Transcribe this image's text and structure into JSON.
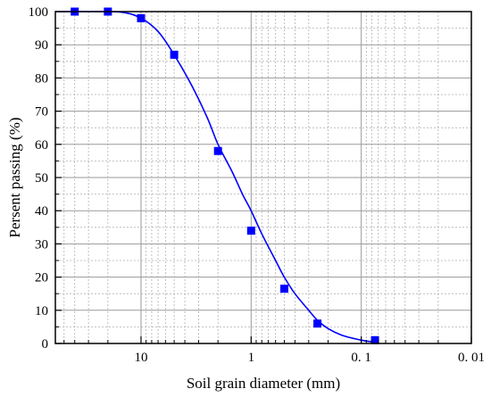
{
  "chart_data": {
    "type": "scatter",
    "title": "",
    "xlabel": "Soil grain diameter (mm)",
    "ylabel": "Persent passing (%)",
    "x_scale": "log",
    "x_reversed": true,
    "xlim": [
      60,
      0.01
    ],
    "ylim": [
      0,
      100
    ],
    "x_ticks": [
      10,
      1,
      0.1,
      0.01
    ],
    "x_tick_labels": [
      "10",
      "1",
      "0. 1",
      "0. 01"
    ],
    "y_ticks": [
      0,
      10,
      20,
      30,
      40,
      50,
      60,
      70,
      80,
      90,
      100
    ],
    "y_tick_labels": [
      "0",
      "10",
      "20",
      "30",
      "40",
      "50",
      "60",
      "70",
      "80",
      "90",
      "100"
    ],
    "grid": true,
    "series": [
      {
        "kind": "points",
        "color": "#0000ff",
        "marker": "square",
        "x": [
          40,
          20,
          10,
          5,
          2,
          1,
          0.5,
          0.25,
          0.075
        ],
        "y": [
          100,
          100,
          98,
          87,
          58,
          34,
          16.5,
          6,
          1
        ]
      },
      {
        "kind": "fitted-curve",
        "color": "#0000ff",
        "x": [
          60,
          30,
          15,
          10,
          7,
          5,
          3.5,
          2.5,
          2,
          1.5,
          1.2,
          1,
          0.8,
          0.6,
          0.5,
          0.4,
          0.3,
          0.25,
          0.2,
          0.15,
          0.1,
          0.08
        ],
        "y": [
          100,
          100,
          99.8,
          98,
          94,
          87,
          78,
          68,
          60,
          52,
          45,
          40,
          33,
          25,
          20,
          15,
          10,
          7,
          4.5,
          2.5,
          1,
          0.5
        ]
      }
    ]
  }
}
